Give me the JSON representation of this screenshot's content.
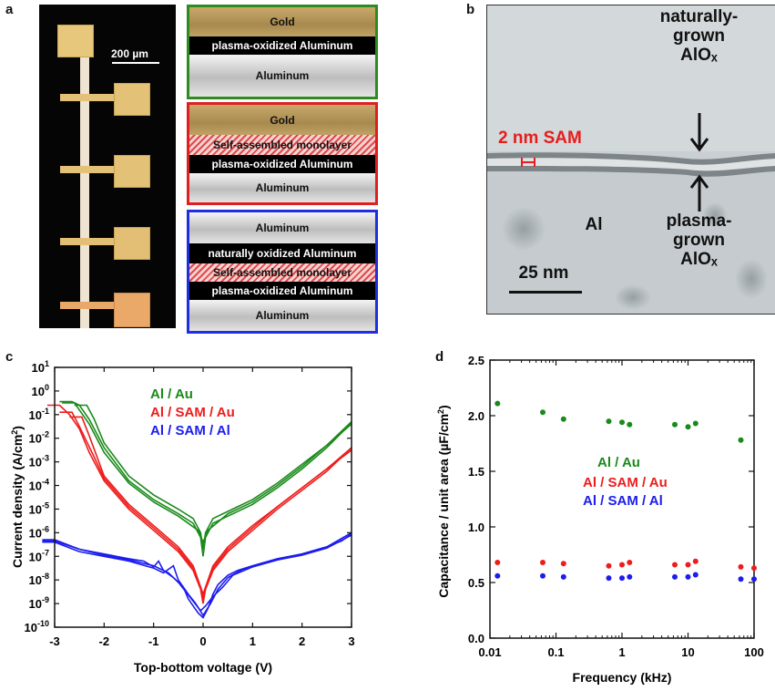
{
  "panels": {
    "a": "a",
    "b": "b",
    "c": "c",
    "d": "d"
  },
  "panel_a": {
    "scale_bar": "200 µm",
    "stacks": [
      {
        "border_color": "#2e8b1f",
        "layers": [
          {
            "kind": "gold",
            "text": "Gold"
          },
          {
            "kind": "oxide",
            "text": "plasma-oxidized Aluminum"
          },
          {
            "kind": "alum",
            "text": "Aluminum"
          }
        ]
      },
      {
        "border_color": "#e02020",
        "layers": [
          {
            "kind": "gold",
            "text": "Gold"
          },
          {
            "kind": "sam",
            "text": "Self-assembled monolayer"
          },
          {
            "kind": "oxide",
            "text": "plasma-oxidized Aluminum"
          },
          {
            "kind": "alum",
            "text": "Aluminum"
          }
        ]
      },
      {
        "border_color": "#1f2fe0",
        "layers": [
          {
            "kind": "alum",
            "text": "Aluminum"
          },
          {
            "kind": "oxide",
            "text": "naturally oxidized Aluminum"
          },
          {
            "kind": "sam",
            "text": "Self-assembled monolayer"
          },
          {
            "kind": "oxide",
            "text": "plasma-oxidized Aluminum"
          },
          {
            "kind": "alum",
            "text": "Aluminum"
          }
        ]
      }
    ]
  },
  "panel_b": {
    "sam_label": "2 nm SAM",
    "al_label": "Al",
    "top_lines": [
      "naturally-",
      "grown",
      "AlOₓ"
    ],
    "bottom_lines": [
      "plasma-",
      "grown",
      "AlOₓ"
    ],
    "scale_bar": "25 nm"
  },
  "chart_data": [
    {
      "type": "line",
      "title": "",
      "xlabel": "Top-bottom voltage (V)",
      "ylabel": "Current density (A/cm²)",
      "ylabel_main": "Current density (A/cm",
      "ylabel_sup": "2",
      "ylabel_end": ")",
      "xlim": [
        -3,
        3
      ],
      "ylim_exponent": [
        -10,
        1
      ],
      "yscale": "log",
      "xticks": [
        "-3",
        "-2",
        "-1",
        "0",
        "1",
        "2",
        "3"
      ],
      "ytick_exponents": [
        "-10",
        "-9",
        "-8",
        "-7",
        "-6",
        "-5",
        "-4",
        "-3",
        "-2",
        "-1",
        "0",
        "1"
      ],
      "ytick_base": "10",
      "legend": [
        {
          "name": "Al / Au",
          "color": "#1a8a1a"
        },
        {
          "name": "Al / SAM / Au",
          "color": "#ee1c1c"
        },
        {
          "name": "Al / SAM / Al",
          "color": "#1c1cee"
        }
      ],
      "series": [
        {
          "name": "Al / Au",
          "color": "#1a8a1a",
          "curves": [
            {
              "x": [
                -2.65,
                -2.5,
                -2.3,
                -2.0,
                -1.5,
                -1.0,
                -0.5,
                -0.2,
                -0.05,
                0.0,
                0.05,
                0.2,
                0.5,
                1.0,
                1.5,
                2.0,
                2.5,
                3.0
              ],
              "y": [
                -0.45,
                -0.6,
                -1.2,
                -2.4,
                -3.8,
                -4.6,
                -5.2,
                -5.6,
                -6.2,
                -7.0,
                -6.2,
                -5.6,
                -5.3,
                -4.8,
                -4.1,
                -3.3,
                -2.4,
                -1.35
              ]
            },
            {
              "x": [
                -2.35,
                -2.2,
                -2.0,
                -1.5,
                -1.0,
                -0.5,
                -0.2,
                -0.05,
                0.0,
                0.05,
                0.2,
                0.5,
                1.0,
                1.5,
                2.0,
                2.5,
                3.0
              ],
              "y": [
                -0.6,
                -1.2,
                -2.2,
                -3.6,
                -4.4,
                -5.0,
                -5.4,
                -6.0,
                -6.7,
                -6.0,
                -5.4,
                -5.1,
                -4.6,
                -3.9,
                -3.1,
                -2.3,
                -1.3
              ]
            },
            {
              "x": [
                -2.6,
                -2.3,
                -2.0,
                -1.5,
                -1.0,
                -0.5,
                -0.1,
                0.0,
                0.1,
                0.5,
                1.0,
                1.5,
                2.0,
                2.5,
                3.0
              ],
              "y": [
                -0.5,
                -1.4,
                -2.6,
                -3.9,
                -4.7,
                -5.3,
                -5.9,
                -6.4,
                -5.9,
                -5.2,
                -4.7,
                -4.0,
                -3.2,
                -2.3,
                -1.4
              ]
            }
          ]
        },
        {
          "name": "Al / SAM / Au",
          "color": "#ee1c1c",
          "curves": [
            {
              "x": [
                -2.9,
                -2.7,
                -2.5,
                -2.3,
                -2.0,
                -1.5,
                -1.0,
                -0.5,
                -0.2,
                -0.05,
                0.0,
                0.05,
                0.2,
                0.5,
                1.0,
                1.5,
                2.0,
                2.5,
                3.0
              ],
              "y": [
                -0.6,
                -1.0,
                -1.6,
                -2.6,
                -3.8,
                -5.0,
                -5.9,
                -6.8,
                -7.6,
                -8.4,
                -9.0,
                -8.4,
                -7.6,
                -6.8,
                -5.9,
                -5.0,
                -4.2,
                -3.4,
                -2.4
              ]
            },
            {
              "x": [
                -2.65,
                -2.5,
                -2.2,
                -2.0,
                -1.5,
                -1.0,
                -0.5,
                -0.2,
                -0.05,
                0.0,
                0.05,
                0.2,
                0.5,
                1.0,
                1.5,
                2.0,
                2.5,
                3.0
              ],
              "y": [
                -0.9,
                -1.5,
                -2.8,
                -3.7,
                -4.9,
                -5.8,
                -6.7,
                -7.5,
                -8.3,
                -8.8,
                -8.3,
                -7.5,
                -6.7,
                -5.8,
                -4.9,
                -4.1,
                -3.3,
                -2.4
              ]
            },
            {
              "x": [
                -2.45,
                -2.3,
                -2.0,
                -1.5,
                -1.0,
                -0.5,
                -0.2,
                0.0,
                0.2,
                0.5,
                1.0,
                1.5,
                2.0,
                2.5,
                3.0
              ],
              "y": [
                -1.1,
                -1.9,
                -3.6,
                -4.8,
                -5.7,
                -6.6,
                -7.4,
                -8.6,
                -7.4,
                -6.6,
                -5.7,
                -4.9,
                -4.1,
                -3.3,
                -2.5
              ]
            }
          ]
        },
        {
          "name": "Al / SAM / Al",
          "color": "#1c1cee",
          "curves": [
            {
              "x": [
                -3.0,
                -2.5,
                -2.0,
                -1.5,
                -1.2,
                -1.0,
                -0.9,
                -0.8,
                -0.6,
                -0.4,
                -0.3,
                -0.2,
                -0.1,
                0.0,
                0.1,
                0.2,
                0.3,
                0.5,
                0.7,
                1.0,
                1.5,
                2.0,
                2.5,
                2.8,
                3.0
              ],
              "y": [
                -6.35,
                -6.7,
                -6.9,
                -7.1,
                -7.2,
                -7.45,
                -7.2,
                -7.6,
                -7.9,
                -8.3,
                -8.8,
                -9.1,
                -9.4,
                -9.6,
                -9.2,
                -8.6,
                -8.2,
                -7.8,
                -7.6,
                -7.4,
                -7.1,
                -6.9,
                -6.6,
                -6.35,
                -6.05
              ]
            },
            {
              "x": [
                -3.0,
                -2.5,
                -2.0,
                -1.5,
                -1.0,
                -0.8,
                -0.6,
                -0.5,
                -0.3,
                -0.15,
                0.0,
                0.15,
                0.3,
                0.5,
                0.8,
                1.0,
                1.5,
                2.0,
                2.5,
                3.0
              ],
              "y": [
                -6.4,
                -6.8,
                -7.0,
                -7.2,
                -7.5,
                -7.7,
                -7.4,
                -8.0,
                -8.6,
                -9.0,
                -9.5,
                -9.0,
                -8.4,
                -7.9,
                -7.55,
                -7.45,
                -7.15,
                -6.95,
                -6.65,
                -6.1
              ]
            },
            {
              "x": [
                -3.0,
                -2.5,
                -2.0,
                -1.5,
                -1.0,
                -0.7,
                -0.5,
                -0.35,
                -0.2,
                -0.05,
                0.05,
                0.2,
                0.4,
                0.6,
                1.0,
                1.5,
                2.0,
                2.5,
                3.0
              ],
              "y": [
                -6.3,
                -6.7,
                -6.95,
                -7.15,
                -7.4,
                -7.7,
                -8.1,
                -8.5,
                -8.9,
                -9.3,
                -9.1,
                -8.7,
                -8.3,
                -7.8,
                -7.45,
                -7.15,
                -6.9,
                -6.6,
                -6.0
              ]
            }
          ]
        }
      ]
    },
    {
      "type": "scatter",
      "title": "",
      "xlabel": "Frequency (kHz)",
      "ylabel": "Capacitance / unit area (µF/cm²)",
      "ylabel_main": "Capacitance / unit area (µF/cm",
      "ylabel_sup": "2",
      "ylabel_end": ")",
      "xscale": "log",
      "xlim": [
        0.01,
        100
      ],
      "ylim": [
        0,
        2.5
      ],
      "xticks": [
        "0.01",
        "0.1",
        "1",
        "10",
        "100"
      ],
      "yticks": [
        "0.0",
        "0.5",
        "1.0",
        "1.5",
        "2.0",
        "2.5"
      ],
      "legend": [
        {
          "name": "Al / Au",
          "color": "#1a8a1a"
        },
        {
          "name": "Al / SAM / Au",
          "color": "#ee1c1c"
        },
        {
          "name": "Al / SAM / Al",
          "color": "#1c1cee"
        }
      ],
      "series": [
        {
          "name": "Al / Au",
          "color": "#1a8a1a",
          "x": [
            0.013,
            0.063,
            0.13,
            0.63,
            1.0,
            1.3,
            6.3,
            10,
            13,
            63
          ],
          "y": [
            2.11,
            2.03,
            1.97,
            1.95,
            1.94,
            1.92,
            1.92,
            1.9,
            1.93,
            1.78
          ]
        },
        {
          "name": "Al / SAM / Au",
          "color": "#ee1c1c",
          "x": [
            0.013,
            0.063,
            0.13,
            0.63,
            1.0,
            1.3,
            6.3,
            10,
            13,
            63,
            100
          ],
          "y": [
            0.68,
            0.68,
            0.67,
            0.65,
            0.66,
            0.68,
            0.66,
            0.66,
            0.69,
            0.64,
            0.63
          ]
        },
        {
          "name": "Al / SAM / Al",
          "color": "#1c1cee",
          "x": [
            0.013,
            0.063,
            0.13,
            0.63,
            1.0,
            1.3,
            6.3,
            10,
            13,
            63,
            100
          ],
          "y": [
            0.56,
            0.56,
            0.55,
            0.54,
            0.54,
            0.55,
            0.55,
            0.55,
            0.57,
            0.53,
            0.53
          ]
        }
      ]
    }
  ]
}
